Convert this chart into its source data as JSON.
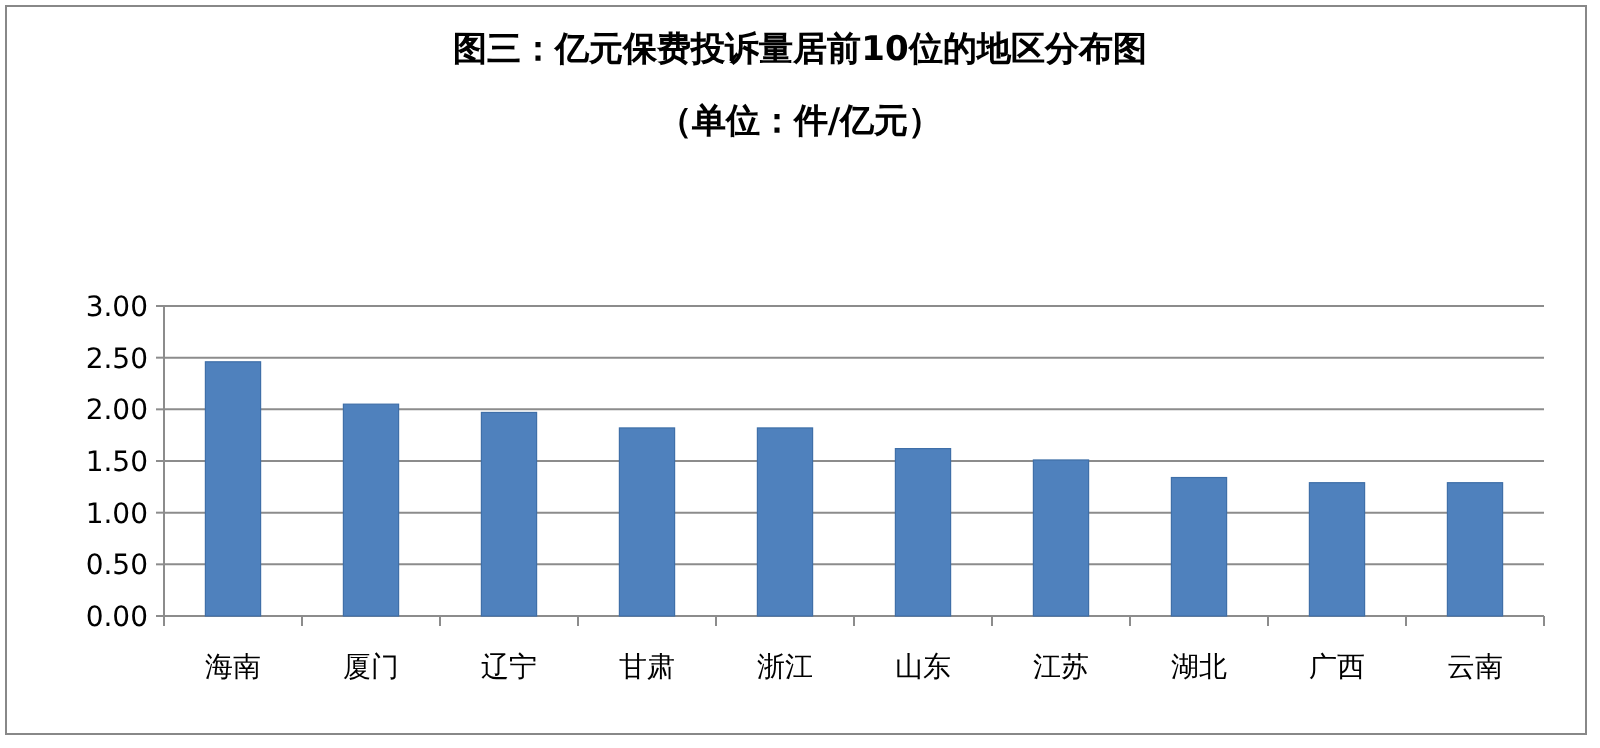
{
  "chart_data": {
    "type": "bar",
    "title": "图三：亿元保费投诉量居前10位的地区分布图",
    "subtitle": "（单位：件/亿元）",
    "categories": [
      "海南",
      "厦门",
      "辽宁",
      "甘肃",
      "浙江",
      "山东",
      "江苏",
      "湖北",
      "广西",
      "云南"
    ],
    "values": [
      2.46,
      2.05,
      1.97,
      1.82,
      1.82,
      1.62,
      1.51,
      1.34,
      1.29,
      1.29
    ],
    "color": "#4f81bd",
    "ylim": [
      0,
      3
    ],
    "yticks": [
      {
        "value": 0,
        "label": "0.00"
      },
      {
        "value": 0.5,
        "label": "0.50"
      },
      {
        "value": 1,
        "label": "1.00"
      },
      {
        "value": 1.5,
        "label": "1.50"
      },
      {
        "value": 2,
        "label": "2.00"
      },
      {
        "value": 2.5,
        "label": "2.50"
      },
      {
        "value": 3,
        "label": "3.00"
      }
    ],
    "grid": "y"
  }
}
